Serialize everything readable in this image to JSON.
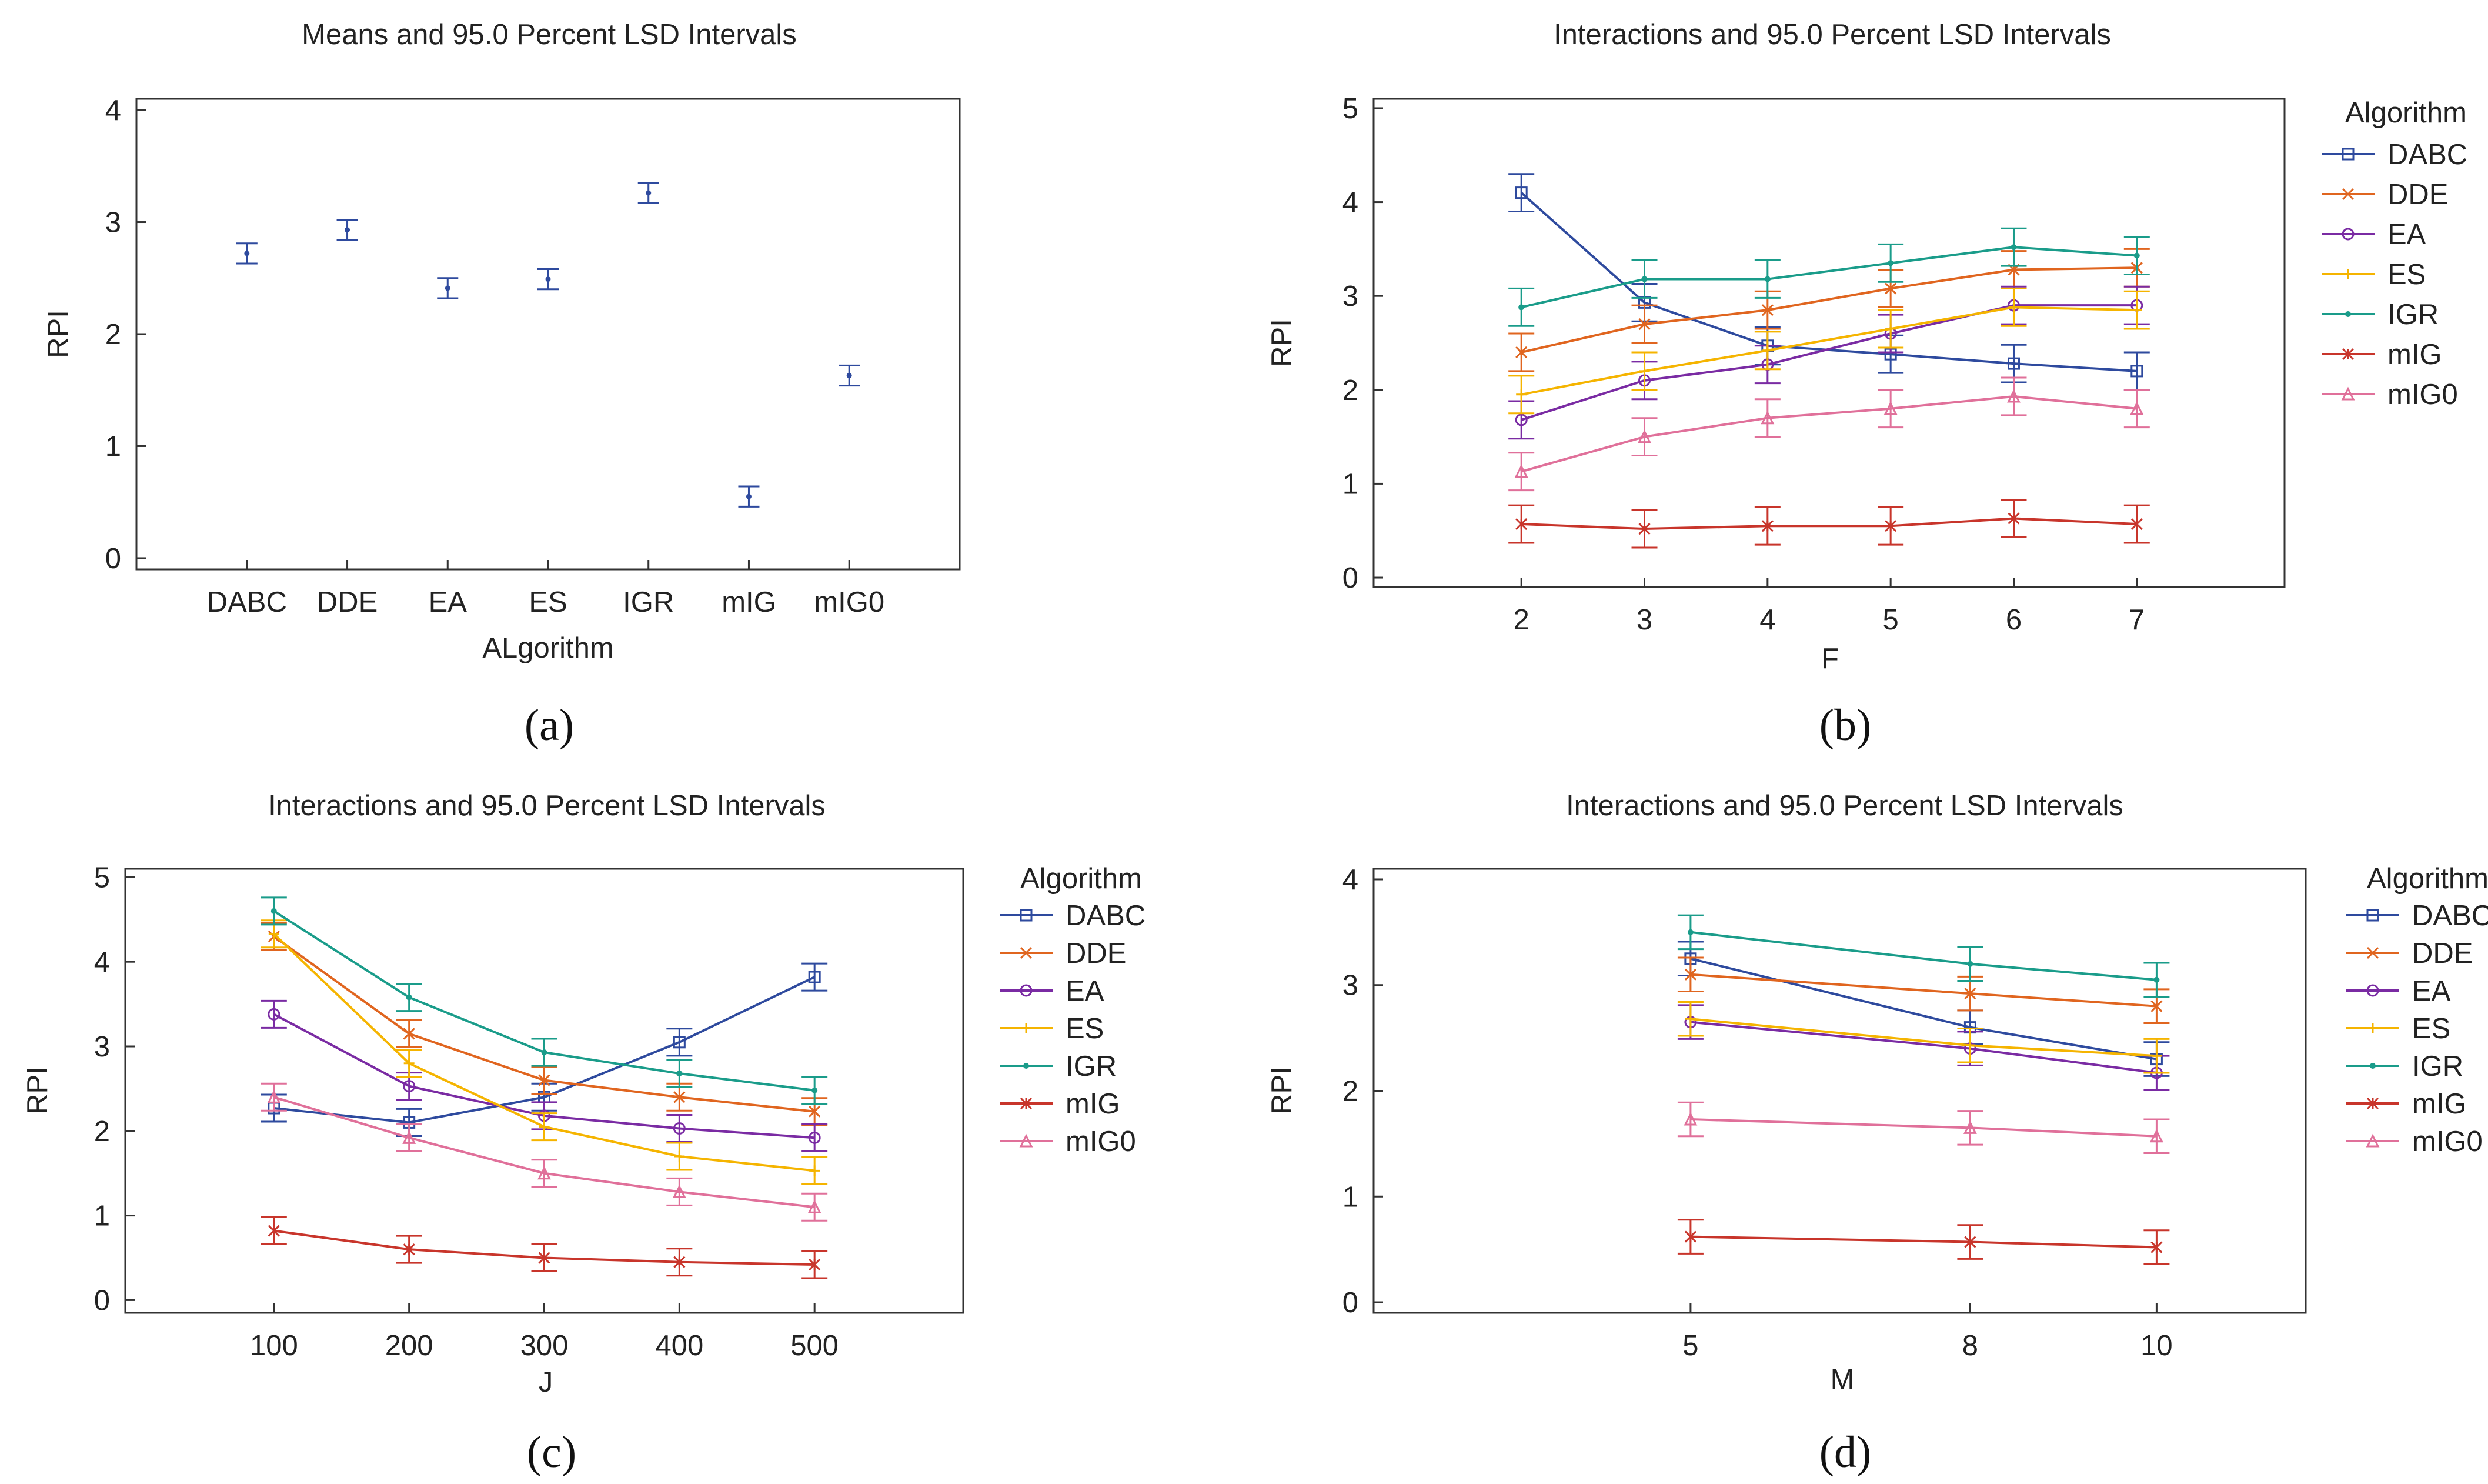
{
  "chart_data": [
    {
      "type": "errorbar",
      "panel": "(a)",
      "title": "Means and 95.0 Percent LSD Intervals",
      "xlabel": "ALgorithm",
      "ylabel": "RPI",
      "ylim": [
        -0.1,
        4.1
      ],
      "yticks": [
        "0",
        "1",
        "2",
        "3",
        "4"
      ],
      "categories": [
        "DABC",
        "DDE",
        "EA",
        "ES",
        "IGR",
        "mIG",
        "mIG0"
      ],
      "means": [
        2.72,
        2.93,
        2.41,
        2.49,
        3.26,
        0.55,
        1.63
      ],
      "lower": [
        2.63,
        2.84,
        2.32,
        2.4,
        3.17,
        0.46,
        1.54
      ],
      "upper": [
        2.81,
        3.02,
        2.5,
        2.58,
        3.35,
        0.64,
        1.72
      ],
      "color": "#2e4a9e"
    },
    {
      "type": "line",
      "panel": "(b)",
      "title": "Interactions and 95.0 Percent LSD Intervals",
      "xlabel": "F",
      "ylabel": "RPI",
      "ylim": [
        -0.1,
        5.1
      ],
      "yticks": [
        "0",
        "1",
        "2",
        "3",
        "4",
        "5"
      ],
      "categories": [
        "2",
        "3",
        "4",
        "5",
        "6",
        "7"
      ],
      "xpad": 1.2,
      "half_interval": 0.2,
      "legend_title": "Algorithm",
      "series": [
        {
          "name": "DABC",
          "color": "#2e4a9e",
          "marker": "square",
          "values": [
            4.1,
            2.93,
            2.47,
            2.38,
            2.28,
            2.2
          ]
        },
        {
          "name": "DDE",
          "color": "#e0651f",
          "marker": "x",
          "values": [
            2.4,
            2.7,
            2.85,
            3.08,
            3.28,
            3.3
          ]
        },
        {
          "name": "EA",
          "color": "#7a2ba3",
          "marker": "circle",
          "values": [
            1.68,
            2.1,
            2.27,
            2.6,
            2.9,
            2.9
          ]
        },
        {
          "name": "ES",
          "color": "#f5b400",
          "marker": "plus",
          "values": [
            1.95,
            2.2,
            2.42,
            2.65,
            2.88,
            2.85
          ]
        },
        {
          "name": "IGR",
          "color": "#1a9c8a",
          "marker": "dot",
          "values": [
            2.88,
            3.18,
            3.18,
            3.35,
            3.52,
            3.43
          ]
        },
        {
          "name": "mIG",
          "color": "#c8352b",
          "marker": "star",
          "values": [
            0.57,
            0.52,
            0.55,
            0.55,
            0.63,
            0.57
          ]
        },
        {
          "name": "mIG0",
          "color": "#e0709a",
          "marker": "triangle",
          "values": [
            1.13,
            1.5,
            1.7,
            1.8,
            1.93,
            1.8
          ]
        }
      ]
    },
    {
      "type": "line",
      "panel": "(c)",
      "title": "Interactions and 95.0 Percent LSD Intervals",
      "xlabel": "J",
      "ylabel": "RPI",
      "ylim": [
        -0.15,
        5.1
      ],
      "yticks": [
        "0",
        "1",
        "2",
        "3",
        "4",
        "5"
      ],
      "categories": [
        "100",
        "200",
        "300",
        "400",
        "500"
      ],
      "xpad": 1.1,
      "half_interval": 0.16,
      "legend_title": "Algorithm",
      "series": [
        {
          "name": "DABC",
          "color": "#2e4a9e",
          "marker": "square",
          "values": [
            2.27,
            2.1,
            2.4,
            3.05,
            3.82
          ]
        },
        {
          "name": "DDE",
          "color": "#e0651f",
          "marker": "x",
          "values": [
            4.3,
            3.15,
            2.6,
            2.4,
            2.23
          ]
        },
        {
          "name": "EA",
          "color": "#7a2ba3",
          "marker": "circle",
          "values": [
            3.38,
            2.53,
            2.18,
            2.03,
            1.92
          ]
        },
        {
          "name": "ES",
          "color": "#f5b400",
          "marker": "plus",
          "values": [
            4.33,
            2.8,
            2.05,
            1.7,
            1.53
          ]
        },
        {
          "name": "IGR",
          "color": "#1a9c8a",
          "marker": "dot",
          "values": [
            4.6,
            3.58,
            2.93,
            2.68,
            2.48
          ]
        },
        {
          "name": "mIG",
          "color": "#c8352b",
          "marker": "star",
          "values": [
            0.82,
            0.6,
            0.5,
            0.45,
            0.42
          ]
        },
        {
          "name": "mIG0",
          "color": "#e0709a",
          "marker": "triangle",
          "values": [
            2.4,
            1.92,
            1.5,
            1.28,
            1.1
          ]
        }
      ]
    },
    {
      "type": "line",
      "panel": "(d)",
      "title": "Interactions and 95.0 Percent LSD Intervals",
      "xlabel": "M",
      "ylabel": "RPI",
      "ylim": [
        -0.1,
        4.1
      ],
      "yticks": [
        "0",
        "1",
        "2",
        "3",
        "4"
      ],
      "categories": [
        "5",
        "8",
        "10"
      ],
      "xnum": [
        5,
        8,
        10
      ],
      "xrange": [
        1.6,
        11.6
      ],
      "half_interval": 0.16,
      "legend_title": "Algorithm",
      "series": [
        {
          "name": "DABC",
          "color": "#2e4a9e",
          "marker": "square",
          "values": [
            3.25,
            2.6,
            2.3
          ]
        },
        {
          "name": "DDE",
          "color": "#e0651f",
          "marker": "x",
          "values": [
            3.1,
            2.92,
            2.8
          ]
        },
        {
          "name": "EA",
          "color": "#7a2ba3",
          "marker": "circle",
          "values": [
            2.65,
            2.4,
            2.17
          ]
        },
        {
          "name": "ES",
          "color": "#f5b400",
          "marker": "plus",
          "values": [
            2.68,
            2.43,
            2.33
          ]
        },
        {
          "name": "IGR",
          "color": "#1a9c8a",
          "marker": "dot",
          "values": [
            3.5,
            3.2,
            3.05
          ]
        },
        {
          "name": "mIG",
          "color": "#c8352b",
          "marker": "star",
          "values": [
            0.62,
            0.57,
            0.52
          ]
        },
        {
          "name": "mIG0",
          "color": "#e0709a",
          "marker": "triangle",
          "values": [
            1.73,
            1.65,
            1.57
          ]
        }
      ]
    }
  ]
}
